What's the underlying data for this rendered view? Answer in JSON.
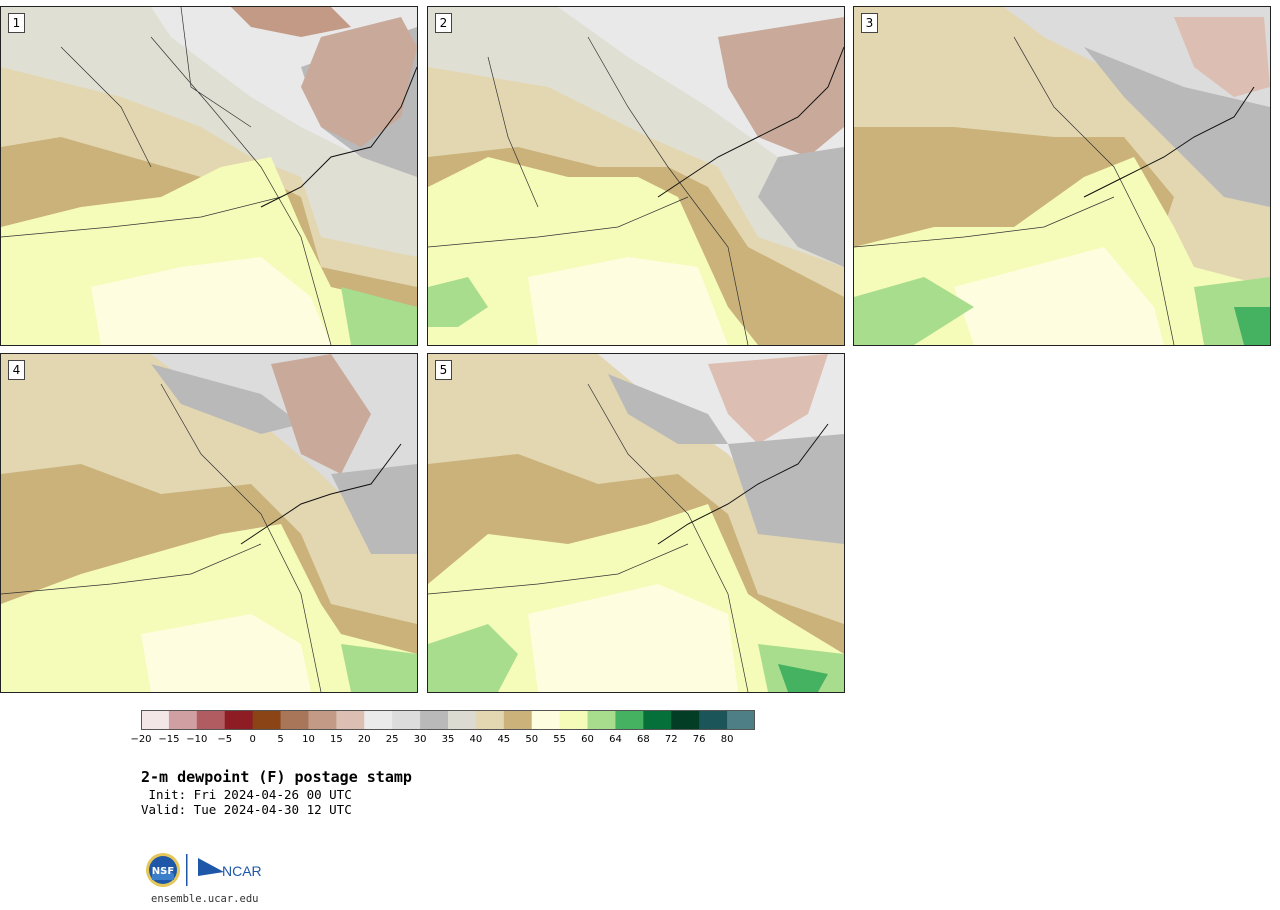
{
  "panels": [
    {
      "label": "1"
    },
    {
      "label": "2"
    },
    {
      "label": "3"
    },
    {
      "label": "4"
    },
    {
      "label": "5"
    }
  ],
  "colorbar": {
    "colors": [
      "#f2e6e6",
      "#d09fa1",
      "#b05c61",
      "#8d1c24",
      "#8a4415",
      "#a9765a",
      "#c29a85",
      "#dcbfb2",
      "#ebebeb",
      "#dcdcdc",
      "#b9b9b9",
      "#dcdbd1",
      "#e3d7b2",
      "#cab27a",
      "#fffde0",
      "#f5fbb8",
      "#a8dd8d",
      "#44b261",
      "#06703a",
      "#033d25",
      "#1b5559",
      "#4f7f86"
    ],
    "tick_labels": [
      "−20",
      "−15",
      "−10",
      "−5",
      "0",
      "5",
      "10",
      "15",
      "20",
      "25",
      "30",
      "35",
      "40",
      "45",
      "50",
      "55",
      "60",
      "64",
      "68",
      "72",
      "76",
      "80"
    ]
  },
  "title": "2-m dewpoint (F) postage stamp",
  "init_line": " Init: Fri 2024-04-26 00 UTC",
  "valid_line": "Valid: Tue 2024-04-30 12 UTC",
  "logos": {
    "left": "NSF",
    "right": "NCAR"
  },
  "footer_url": "ensemble.ucar.edu"
}
